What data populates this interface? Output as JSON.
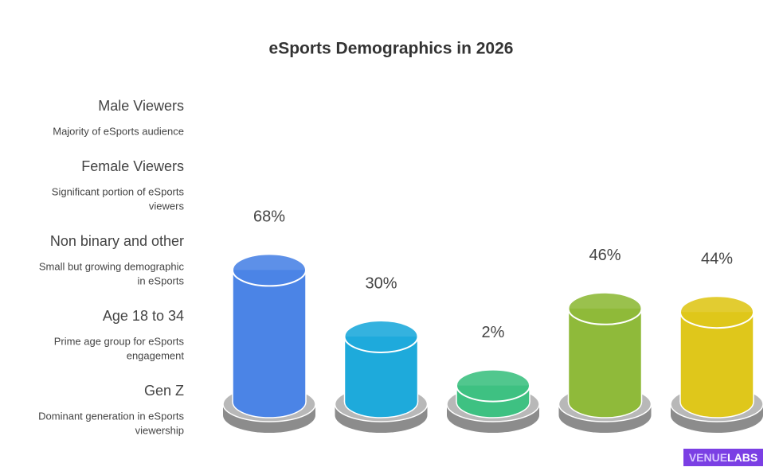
{
  "chart_data": {
    "type": "cylinder",
    "title": "eSports Demographics in 2026",
    "categories": [
      "Male Viewers",
      "Female Viewers",
      "Non binary and other",
      "Age 18 to 34",
      "Gen Z"
    ],
    "descriptions": [
      [
        "Majority of eSports audience"
      ],
      [
        "Significant portion of eSports",
        "viewers"
      ],
      [
        "Small but growing demographic",
        "in eSports"
      ],
      [
        "Prime age group for eSports",
        "engagement"
      ],
      [
        "Dominant generation in eSports",
        "viewership"
      ]
    ],
    "values": [
      68,
      30,
      2,
      46,
      44
    ],
    "value_labels": [
      "68%",
      "30%",
      "2%",
      "46%",
      "44%"
    ],
    "colors": [
      "#4b84e6",
      "#1eaadb",
      "#3ec182",
      "#8fba3a",
      "#dfc71b"
    ]
  },
  "brand": [
    "VENUE",
    "LABS"
  ]
}
